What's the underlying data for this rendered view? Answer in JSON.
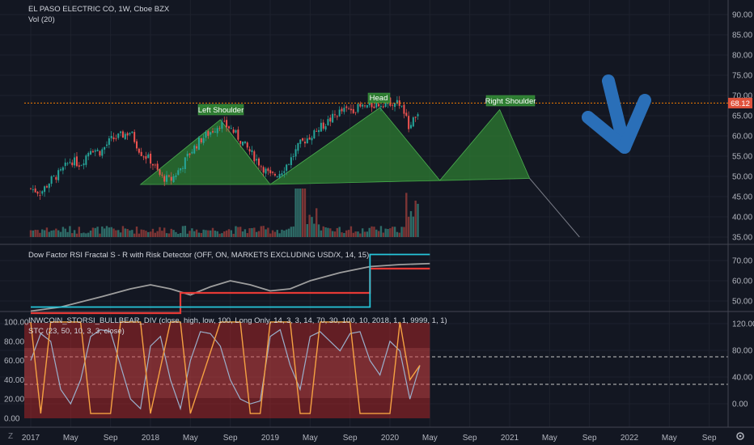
{
  "symbol_title": "EL PASO ELECTRIC CO, 1W, Cboe BZX",
  "volume_label": "Vol (20)",
  "price_badge": "68.12",
  "indicator2_title": "Dow Factor RSI Fractal S - R with Risk Detector (OFF, ON, MARKETS EXCLUDING USD/X, 14, 15)",
  "indicator3_title": "INWCOIN_STORSI_BULLBEAR_DIV (close, high, low, 100, Long Only, 14, 3, 3, 14, 70, 30, 100, 10, 2018, 1, 1, 9999, 1, 1)",
  "indicator3_subtitle": "STC (23, 50, 10, 3, 3, close)",
  "annotations": {
    "left_shoulder": "Left Shoulder",
    "head": "Head",
    "right_shoulder": "Right Shoulder"
  },
  "colors": {
    "background": "#131722",
    "up": "#26a69a",
    "down": "#ef5350",
    "pattern_fill": "#2e7d32",
    "resistance": "#f57c00",
    "arrow": "#2a6fb8",
    "rsi_line": "#9e9e9e",
    "support_red": "#e53935",
    "resist_teal": "#26c6da",
    "stoch_band": "#c62828",
    "stoch_line": "#f5a142",
    "stc_line": "#9ab0cc"
  },
  "chart_data": [
    {
      "type": "line",
      "panel": "price",
      "title": "EL PASO ELECTRIC CO, 1W, Cboe BZX",
      "y_ticks": [
        "90.00",
        "85.00",
        "80.00",
        "75.00",
        "70.00",
        "65.00",
        "60.00",
        "55.00",
        "50.00",
        "45.00",
        "40.00",
        "35.00"
      ],
      "ylim": [
        33,
        92
      ],
      "resistance_level": 68.12,
      "x_ticks": [
        "2017",
        "May",
        "Sep",
        "2018",
        "May",
        "Sep",
        "2019",
        "May",
        "Sep",
        "2020",
        "May",
        "Sep",
        "2021",
        "May",
        "Sep",
        "2022",
        "May",
        "Sep"
      ],
      "xlim": [
        "2017-01",
        "2022-11"
      ],
      "price_path": [
        [
          "2017-01",
          47
        ],
        [
          "2017-02",
          46
        ],
        [
          "2017-03",
          49
        ],
        [
          "2017-04",
          51
        ],
        [
          "2017-05",
          54
        ],
        [
          "2017-06",
          53
        ],
        [
          "2017-07",
          57
        ],
        [
          "2017-08",
          56
        ],
        [
          "2017-09",
          59
        ],
        [
          "2017-10",
          60
        ],
        [
          "2017-11",
          61
        ],
        [
          "2017-12",
          56
        ],
        [
          "2018-01",
          54
        ],
        [
          "2018-02",
          50
        ],
        [
          "2018-03",
          49
        ],
        [
          "2018-04",
          52
        ],
        [
          "2018-05",
          56
        ],
        [
          "2018-06",
          59
        ],
        [
          "2018-07",
          61
        ],
        [
          "2018-08",
          63
        ],
        [
          "2018-09",
          62
        ],
        [
          "2018-10",
          59
        ],
        [
          "2018-11",
          56
        ],
        [
          "2018-12",
          53
        ],
        [
          "2019-01",
          50
        ],
        [
          "2019-02",
          51
        ],
        [
          "2019-03",
          54
        ],
        [
          "2019-04",
          58
        ],
        [
          "2019-05",
          60
        ],
        [
          "2019-06",
          62
        ],
        [
          "2019-07",
          64
        ],
        [
          "2019-08",
          66
        ],
        [
          "2019-09",
          66.5
        ],
        [
          "2019-10",
          67
        ],
        [
          "2019-11",
          67.5
        ],
        [
          "2019-12",
          68
        ],
        [
          "2020-01",
          68.5
        ],
        [
          "2020-02",
          68
        ],
        [
          "2020-03",
          62
        ],
        [
          "2020-04",
          67
        ]
      ],
      "pattern_points": {
        "left_shoulder": [
          [
            "2017-12",
            48
          ],
          [
            "2018-08",
            64
          ],
          [
            "2019-01",
            48
          ]
        ],
        "head": [
          [
            "2019-01",
            48
          ],
          [
            "2019-12",
            67
          ],
          [
            "2020-06",
            49
          ]
        ],
        "right_shoulder": [
          [
            "2020-06",
            49
          ],
          [
            "2020-12",
            66.5
          ],
          [
            "2021-03",
            49.5
          ]
        ]
      },
      "projection": [
        [
          "2021-03",
          49.5
        ],
        [
          "2021-08",
          35
        ]
      ]
    },
    {
      "type": "line",
      "panel": "rsi",
      "title": "Dow Factor RSI Fractal S - R with Risk Detector (OFF, ON, MARKETS EXCLUDING USD/X, 14, 15)",
      "y_ticks": [
        "70.00",
        "60.00",
        "50.00"
      ],
      "ylim": [
        42,
        76
      ],
      "series": [
        {
          "values": [
            [
              "2017-01",
              45
            ],
            [
              "2017-04",
              47
            ],
            [
              "2017-08",
              52
            ],
            [
              "2017-11",
              56
            ],
            [
              "2018-01",
              58
            ],
            [
              "2018-03",
              56
            ],
            [
              "2018-05",
              53
            ],
            [
              "2018-07",
              57
            ],
            [
              "2018-09",
              60
            ],
            [
              "2018-11",
              58
            ],
            [
              "2019-01",
              55
            ],
            [
              "2019-03",
              56
            ],
            [
              "2019-05",
              60
            ],
            [
              "2019-08",
              64
            ],
            [
              "2019-11",
              67
            ],
            [
              "2020-02",
              68
            ],
            [
              "2020-05",
              68.5
            ]
          ]
        },
        {
          "values": [
            [
              "2017-01",
              44
            ],
            [
              "2018-04",
              44
            ],
            [
              "2018-04",
              54
            ],
            [
              "2019-11",
              54
            ],
            [
              "2019-11",
              66
            ],
            [
              "2020-05",
              66
            ]
          ]
        },
        {
          "values": [
            [
              "2017-01",
              47
            ],
            [
              "2019-11",
              47
            ],
            [
              "2019-11",
              73
            ],
            [
              "2020-05",
              73
            ]
          ]
        }
      ]
    },
    {
      "type": "line",
      "panel": "stoch",
      "title": "INWCOIN_STORSI_BULLBEAR_DIV / STC (23, 50, 10, 3, 3, close)",
      "left_ticks": [
        "100.00",
        "80.00",
        "60.00",
        "40.00",
        "20.00",
        "0.00"
      ],
      "right_ticks": [
        "120.00",
        "80.00",
        "40.00",
        "0.00"
      ],
      "ylim": [
        -5,
        105
      ],
      "dashed_levels": [
        70,
        30
      ],
      "series": [
        {
          "values": [
            [
              "2017-01",
              60
            ],
            [
              "2017-02",
              88
            ],
            [
              "2017-03",
              80
            ],
            [
              "2017-04",
              30
            ],
            [
              "2017-05",
              15
            ],
            [
              "2017-06",
              40
            ],
            [
              "2017-07",
              85
            ],
            [
              "2017-08",
              92
            ],
            [
              "2017-09",
              90
            ],
            [
              "2017-10",
              55
            ],
            [
              "2017-11",
              20
            ],
            [
              "2017-12",
              10
            ],
            [
              "2018-01",
              75
            ],
            [
              "2018-02",
              85
            ],
            [
              "2018-03",
              40
            ],
            [
              "2018-04",
              10
            ],
            [
              "2018-05",
              60
            ],
            [
              "2018-06",
              90
            ],
            [
              "2018-07",
              88
            ],
            [
              "2018-08",
              75
            ],
            [
              "2018-09",
              40
            ],
            [
              "2018-10",
              20
            ],
            [
              "2018-11",
              15
            ],
            [
              "2018-12",
              18
            ],
            [
              "2019-01",
              85
            ],
            [
              "2019-02",
              92
            ],
            [
              "2019-03",
              55
            ],
            [
              "2019-04",
              30
            ],
            [
              "2019-05",
              85
            ],
            [
              "2019-06",
              90
            ],
            [
              "2019-07",
              80
            ],
            [
              "2019-08",
              70
            ],
            [
              "2019-09",
              88
            ],
            [
              "2019-10",
              90
            ],
            [
              "2019-11",
              60
            ],
            [
              "2019-12",
              45
            ],
            [
              "2020-01",
              80
            ],
            [
              "2020-02",
              70
            ],
            [
              "2020-03",
              20
            ],
            [
              "2020-04",
              55
            ]
          ]
        },
        {
          "values": [
            [
              "2017-01",
              100
            ],
            [
              "2017-02",
              5
            ],
            [
              "2017-03",
              100
            ],
            [
              "2017-06",
              100
            ],
            [
              "2017-07",
              5
            ],
            [
              "2017-09",
              5
            ],
            [
              "2017-10",
              100
            ],
            [
              "2017-12",
              100
            ],
            [
              "2018-01",
              5
            ],
            [
              "2018-03",
              100
            ],
            [
              "2018-04",
              100
            ],
            [
              "2018-05",
              5
            ],
            [
              "2018-08",
              100
            ],
            [
              "2018-10",
              100
            ],
            [
              "2018-11",
              5
            ],
            [
              "2018-12",
              5
            ],
            [
              "2019-01",
              100
            ],
            [
              "2019-03",
              100
            ],
            [
              "2019-04",
              5
            ],
            [
              "2019-05",
              5
            ],
            [
              "2019-06",
              100
            ],
            [
              "2019-09",
              100
            ],
            [
              "2019-10",
              5
            ],
            [
              "2020-01",
              5
            ],
            [
              "2020-02",
              100
            ],
            [
              "2020-03",
              40
            ],
            [
              "2020-04",
              55
            ]
          ]
        }
      ]
    }
  ]
}
